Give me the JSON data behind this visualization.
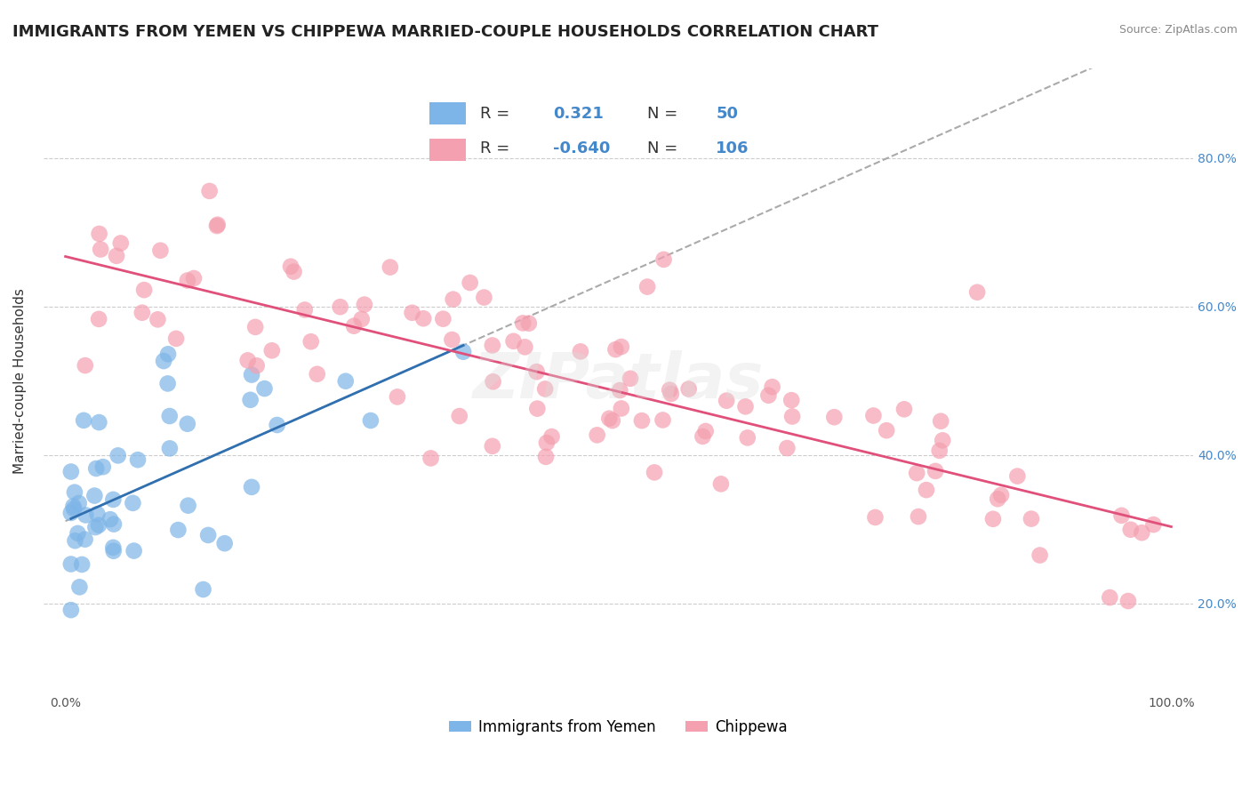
{
  "title": "IMMIGRANTS FROM YEMEN VS CHIPPEWA MARRIED-COUPLE HOUSEHOLDS CORRELATION CHART",
  "source": "Source: ZipAtlas.com",
  "ylabel": "Married-couple Households",
  "ylim": [
    0.08,
    0.92
  ],
  "xlim": [
    -0.02,
    1.02
  ],
  "yticks": [
    0.2,
    0.4,
    0.6,
    0.8
  ],
  "ytick_labels": [
    "20.0%",
    "40.0%",
    "60.0%",
    "80.0%"
  ],
  "series1_name": "Immigrants from Yemen",
  "series1_R": 0.321,
  "series1_N": 50,
  "series1_color": "#7eb5e8",
  "series1_line_color": "#3070b0",
  "series2_name": "Chippewa",
  "series2_R": -0.64,
  "series2_N": 106,
  "series2_color": "#f4a0b0",
  "series2_line_color": "#e0507a",
  "watermark": "ZIPatlas",
  "background_color": "#ffffff",
  "grid_color": "#cccccc",
  "title_fontsize": 13,
  "axis_label_fontsize": 11,
  "tick_fontsize": 10,
  "legend_fontsize": 13
}
